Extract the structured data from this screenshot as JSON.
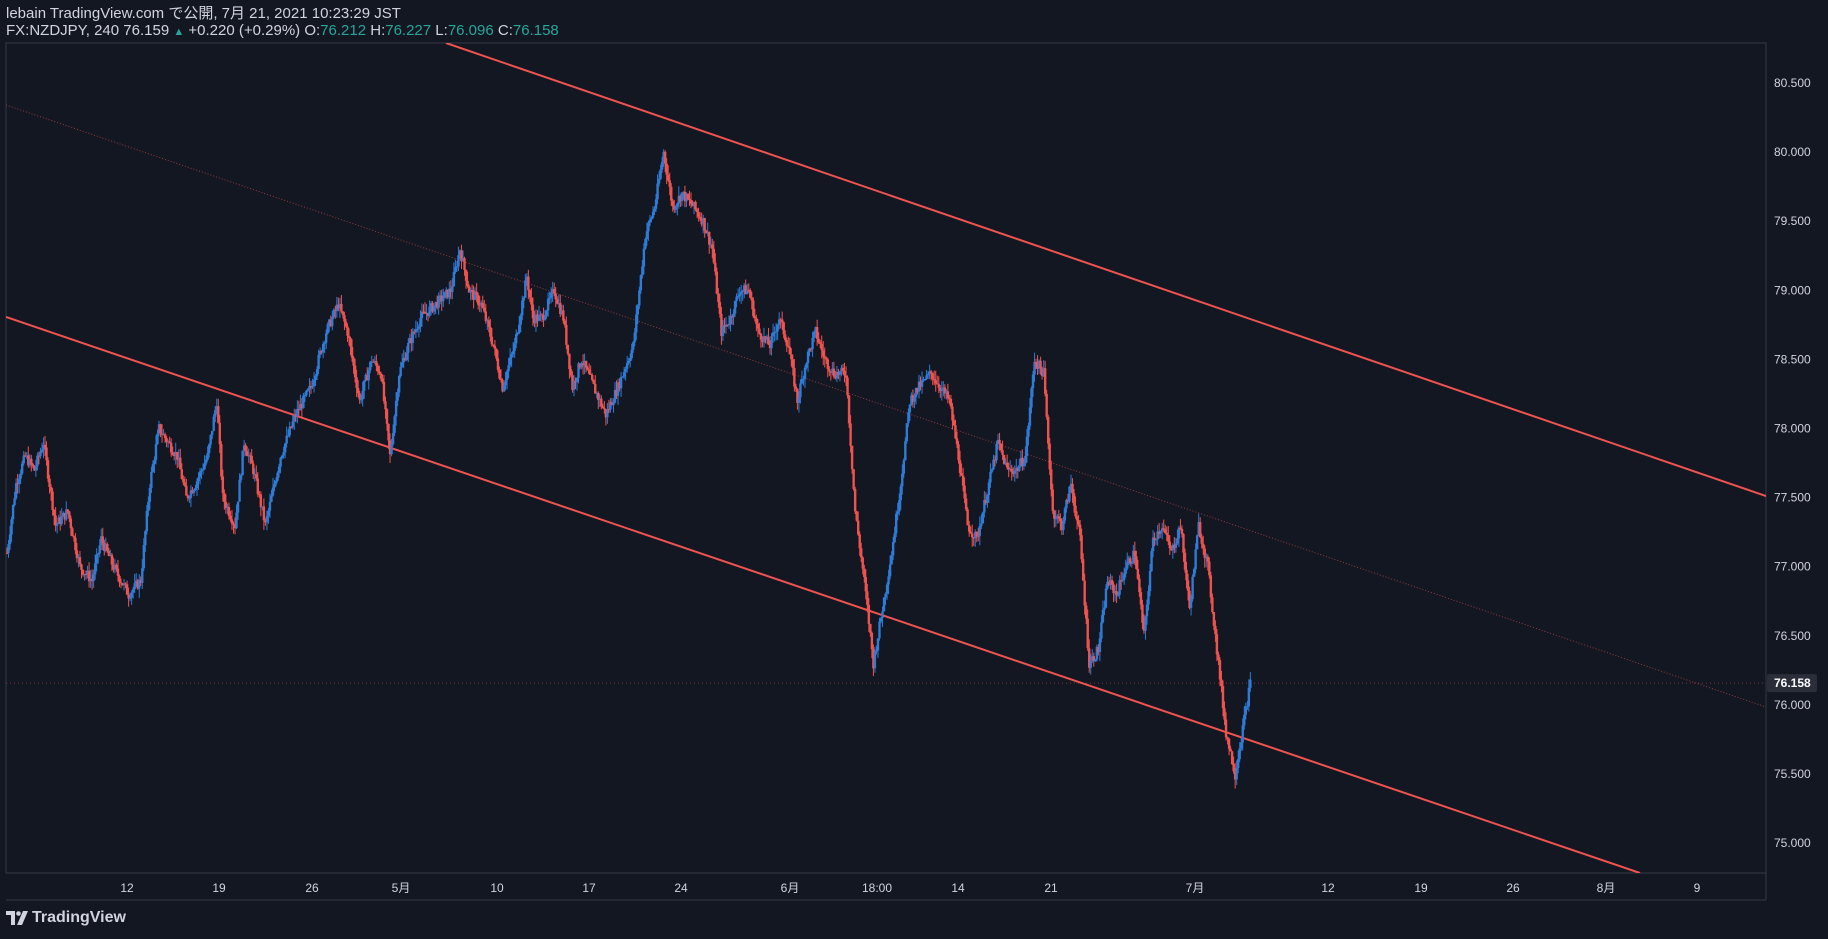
{
  "header": {
    "published": "lebain TradingView.com で公開, 7月 21, 2021 10:23:29 JST",
    "symbol_interval": "FX:NZDJPY, 240",
    "last": "76.159",
    "change": "+0.220 (+0.29%)",
    "o_label": "O:",
    "o": "76.212",
    "h_label": "H:",
    "h": "76.227",
    "l_label": "L:",
    "l": "76.096",
    "c_label": "C:",
    "c": "76.158"
  },
  "branding": {
    "logo_text": "TradingView",
    "logo_icon": "tradingview-logo-icon"
  },
  "colors": {
    "background": "#131722",
    "up": "#2f7bd6",
    "down": "#ef5350",
    "channel": "#ef5350",
    "text": "#d1d4dc",
    "accent": "#26a69a"
  },
  "chart_data": {
    "type": "candlestick",
    "symbol": "FX:NZDJPY",
    "interval": "240",
    "ylim": [
      74.9,
      80.7
    ],
    "yticks": [
      "80.500",
      "80.000",
      "79.500",
      "79.000",
      "78.500",
      "78.000",
      "77.500",
      "77.000",
      "76.500",
      "76.000",
      "75.500",
      "75.000"
    ],
    "xticks": [
      "12",
      "19",
      "26",
      "5月",
      "10",
      "17",
      "24",
      "6月",
      "18:00",
      "14",
      "21",
      "7月",
      "12",
      "19",
      "26",
      "8月",
      "9"
    ],
    "last_price_label": "76.158",
    "close_path": [
      [
        0,
        77.1
      ],
      [
        6,
        77.6
      ],
      [
        12,
        77.8
      ],
      [
        18,
        77.7
      ],
      [
        24,
        77.9
      ],
      [
        32,
        77.3
      ],
      [
        40,
        77.4
      ],
      [
        48,
        77.0
      ],
      [
        56,
        76.9
      ],
      [
        62,
        77.2
      ],
      [
        70,
        77.0
      ],
      [
        80,
        76.8
      ],
      [
        88,
        76.9
      ],
      [
        94,
        77.6
      ],
      [
        100,
        78.0
      ],
      [
        106,
        77.9
      ],
      [
        112,
        77.8
      ],
      [
        118,
        77.5
      ],
      [
        124,
        77.6
      ],
      [
        132,
        77.8
      ],
      [
        138,
        78.2
      ],
      [
        142,
        77.5
      ],
      [
        150,
        77.3
      ],
      [
        156,
        77.9
      ],
      [
        162,
        77.7
      ],
      [
        170,
        77.3
      ],
      [
        180,
        77.8
      ],
      [
        190,
        78.1
      ],
      [
        200,
        78.3
      ],
      [
        210,
        78.7
      ],
      [
        218,
        78.9
      ],
      [
        224,
        78.7
      ],
      [
        232,
        78.2
      ],
      [
        240,
        78.5
      ],
      [
        246,
        78.4
      ],
      [
        252,
        77.8
      ],
      [
        258,
        78.4
      ],
      [
        264,
        78.6
      ],
      [
        272,
        78.8
      ],
      [
        282,
        78.9
      ],
      [
        292,
        79.0
      ],
      [
        298,
        79.3
      ],
      [
        304,
        79.0
      ],
      [
        312,
        78.9
      ],
      [
        320,
        78.6
      ],
      [
        326,
        78.3
      ],
      [
        334,
        78.6
      ],
      [
        342,
        79.1
      ],
      [
        346,
        78.8
      ],
      [
        352,
        78.8
      ],
      [
        360,
        79.0
      ],
      [
        366,
        78.8
      ],
      [
        372,
        78.3
      ],
      [
        378,
        78.5
      ],
      [
        386,
        78.3
      ],
      [
        394,
        78.1
      ],
      [
        402,
        78.3
      ],
      [
        412,
        78.6
      ],
      [
        420,
        79.4
      ],
      [
        426,
        79.6
      ],
      [
        432,
        80.0
      ],
      [
        438,
        79.6
      ],
      [
        444,
        79.7
      ],
      [
        452,
        79.6
      ],
      [
        458,
        79.5
      ],
      [
        464,
        79.3
      ],
      [
        470,
        78.7
      ],
      [
        476,
        78.8
      ],
      [
        482,
        79.0
      ],
      [
        488,
        79.0
      ],
      [
        494,
        78.7
      ],
      [
        502,
        78.6
      ],
      [
        508,
        78.8
      ],
      [
        514,
        78.6
      ],
      [
        520,
        78.2
      ],
      [
        526,
        78.5
      ],
      [
        532,
        78.7
      ],
      [
        538,
        78.5
      ],
      [
        544,
        78.4
      ],
      [
        552,
        78.4
      ],
      [
        558,
        77.4
      ],
      [
        564,
        76.9
      ],
      [
        570,
        76.3
      ],
      [
        576,
        76.7
      ],
      [
        582,
        77.1
      ],
      [
        588,
        77.6
      ],
      [
        594,
        78.2
      ],
      [
        600,
        78.3
      ],
      [
        608,
        78.4
      ],
      [
        614,
        78.3
      ],
      [
        620,
        78.2
      ],
      [
        626,
        77.8
      ],
      [
        632,
        77.3
      ],
      [
        638,
        77.2
      ],
      [
        644,
        77.5
      ],
      [
        652,
        77.9
      ],
      [
        658,
        77.7
      ],
      [
        664,
        77.7
      ],
      [
        670,
        77.8
      ],
      [
        676,
        78.5
      ],
      [
        682,
        78.4
      ],
      [
        688,
        77.4
      ],
      [
        694,
        77.3
      ],
      [
        700,
        77.6
      ],
      [
        706,
        77.2
      ],
      [
        712,
        76.3
      ],
      [
        718,
        76.4
      ],
      [
        724,
        76.9
      ],
      [
        730,
        76.8
      ],
      [
        736,
        77.0
      ],
      [
        742,
        77.1
      ],
      [
        748,
        76.5
      ],
      [
        754,
        77.2
      ],
      [
        760,
        77.3
      ],
      [
        766,
        77.1
      ],
      [
        772,
        77.3
      ],
      [
        778,
        76.7
      ],
      [
        784,
        77.3
      ],
      [
        790,
        77.0
      ],
      [
        796,
        76.4
      ],
      [
        802,
        75.8
      ],
      [
        808,
        75.5
      ],
      [
        814,
        75.9
      ],
      [
        818,
        76.158
      ]
    ]
  }
}
